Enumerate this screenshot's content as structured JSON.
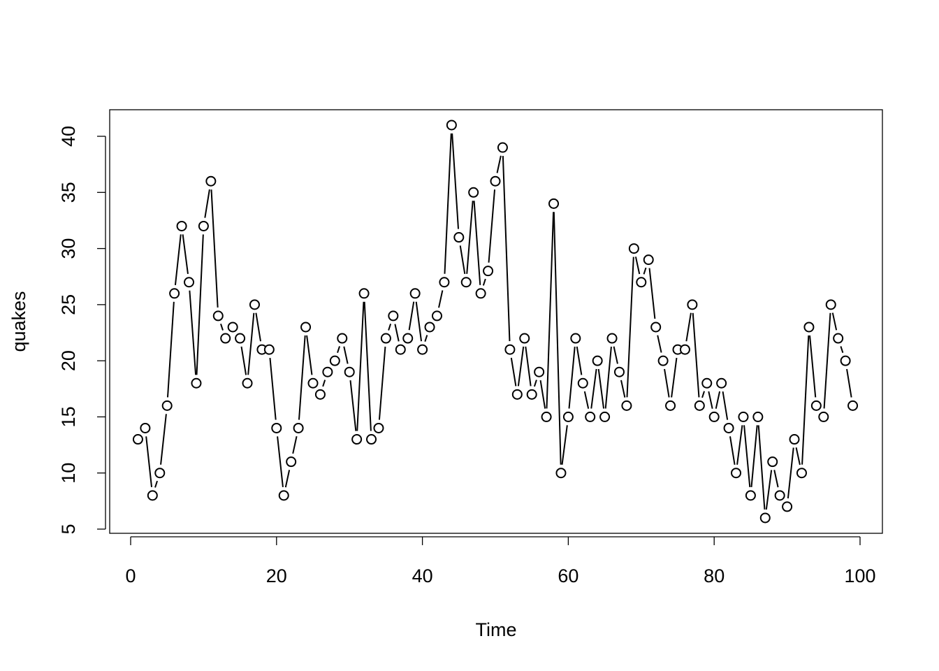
{
  "chart_data": {
    "type": "line",
    "style": "points-and-lines",
    "title": "",
    "xlabel": "Time",
    "ylabel": "quakes",
    "xlim": [
      0,
      100
    ],
    "ylim": [
      5,
      41
    ],
    "x_ticks": [
      0,
      20,
      40,
      60,
      80,
      100
    ],
    "y_ticks": [
      5,
      10,
      15,
      20,
      25,
      30,
      35,
      40
    ],
    "x_tick_labels": [
      "0",
      "20",
      "40",
      "60",
      "80",
      "100"
    ],
    "y_tick_labels": [
      "5",
      "10",
      "15",
      "20",
      "25",
      "30",
      "35",
      "40"
    ],
    "grid": false,
    "legend": "none",
    "series": [
      {
        "x_start": 1,
        "values": [
          13,
          14,
          8,
          10,
          16,
          26,
          32,
          27,
          18,
          32,
          36,
          24,
          22,
          23,
          22,
          18,
          25,
          21,
          21,
          14,
          8,
          11,
          14,
          23,
          18,
          17,
          19,
          20,
          22,
          19,
          13,
          26,
          13,
          14,
          22,
          24,
          21,
          22,
          26,
          21,
          23,
          24,
          27,
          41,
          31,
          27,
          35,
          26,
          28,
          36,
          39,
          21,
          17,
          22,
          17,
          19,
          15,
          34,
          10,
          15,
          22,
          18,
          15,
          20,
          15,
          22,
          19,
          16,
          30,
          27,
          29,
          23,
          20,
          16,
          21,
          21,
          25,
          16,
          18,
          15,
          18,
          14,
          10,
          15,
          8,
          15,
          6,
          11,
          8,
          7,
          13,
          10,
          23,
          16,
          15,
          25,
          22,
          20,
          16
        ]
      }
    ]
  }
}
